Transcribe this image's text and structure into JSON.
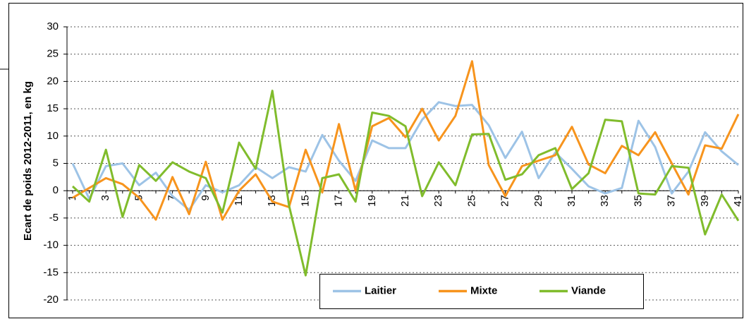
{
  "chart_data": {
    "type": "line",
    "y_label": "Ecart de poids 2012-2011, en kg",
    "categories": [
      "1",
      null,
      "3",
      null,
      "5",
      null,
      "7",
      null,
      "9",
      null,
      "11",
      null,
      "13",
      null,
      "15",
      null,
      "17",
      null,
      "19",
      null,
      "21",
      null,
      "23",
      null,
      "25",
      null,
      "27",
      null,
      "29",
      null,
      "31",
      null,
      "33",
      null,
      "35",
      null,
      "37",
      null,
      "39",
      null,
      "41"
    ],
    "series": [
      {
        "name": "Laitier",
        "color": "#9dc3e6",
        "values": [
          5,
          -1.5,
          4.5,
          5,
          1,
          3.3,
          -1,
          -3.5,
          1,
          -0.3,
          1,
          4.3,
          2.3,
          4.3,
          3.5,
          10.2,
          5.5,
          1.8,
          9.2,
          7.8,
          7.8,
          13,
          16.2,
          15.5,
          15.7,
          12,
          6,
          10.8,
          2.3,
          7,
          4,
          0.8,
          -0.5,
          0.5,
          12.8,
          8,
          -0.5,
          3.5,
          10.7,
          7.2,
          4.7
        ]
      },
      {
        "name": "Mixte",
        "color": "#f7941d",
        "values": [
          -1.3,
          0.5,
          2.3,
          1.2,
          -1.3,
          -5.3,
          2.5,
          -4.3,
          5.3,
          -5.3,
          0,
          3,
          -2,
          -3,
          7.5,
          -0.3,
          12.2,
          0,
          11.8,
          13.3,
          9.8,
          15,
          9.2,
          13.7,
          23.7,
          4.7,
          -1,
          4.5,
          5.5,
          6.5,
          11.7,
          4.8,
          3.2,
          8.2,
          6.5,
          10.7,
          5,
          -0.7,
          8.3,
          7.7,
          14
        ]
      },
      {
        "name": "Viande",
        "color": "#80bc2c",
        "values": [
          0.8,
          -2,
          7.5,
          -4.8,
          4.7,
          1.8,
          5.2,
          3.5,
          2.3,
          -4,
          8.8,
          4,
          18.3,
          -2.7,
          -15.5,
          2.3,
          3,
          -2,
          14.3,
          13.7,
          11.8,
          -1,
          5.2,
          1,
          10.3,
          10.4,
          2,
          3,
          6.5,
          7.8,
          0.3,
          3.2,
          13,
          12.7,
          -0.5,
          -0.7,
          4.5,
          4.2,
          -8,
          -0.7,
          -5.5
        ]
      }
    ],
    "ylim": [
      -20,
      30
    ],
    "yticks": [
      -20,
      -15,
      -10,
      -5,
      0,
      5,
      10,
      15,
      20,
      25,
      30
    ],
    "grid": true,
    "legend": "bottom"
  }
}
